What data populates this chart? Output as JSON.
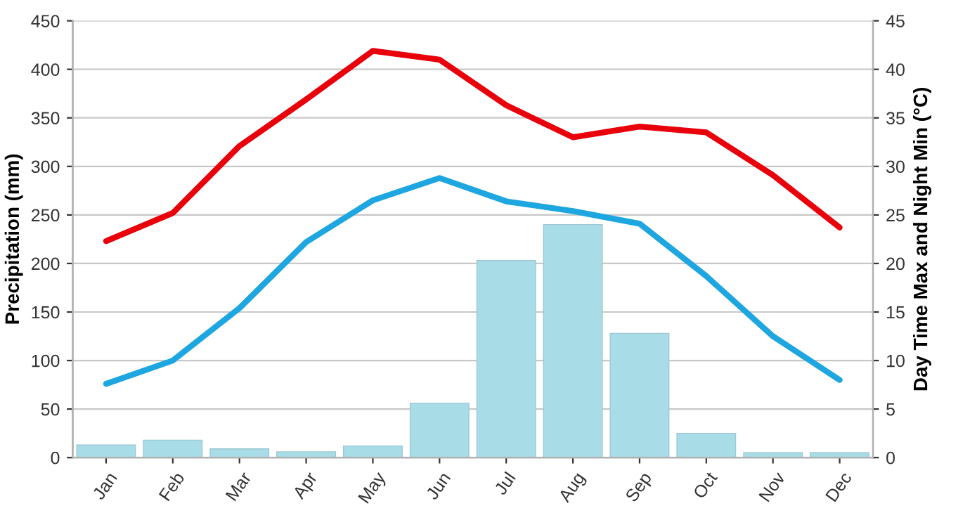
{
  "chart_data": {
    "type": "bar",
    "ylabel": "Precipitation (mm)",
    "y2label": "Day Time Max and Night Min (°C)",
    "categories": [
      "Jan",
      "Feb",
      "Mar",
      "Apr",
      "May",
      "Jun",
      "Jul",
      "Aug",
      "Sep",
      "Oct",
      "Nov",
      "Dec"
    ],
    "series": [
      {
        "color": "#a8dde8",
        "values": [
          13,
          18,
          9,
          6,
          12,
          56,
          203,
          240,
          128,
          25,
          5,
          5
        ]
      },
      {
        "type": "line",
        "axis": "y2",
        "color": "#e8000b",
        "values": [
          22.3,
          25.2,
          32.1,
          36.9,
          41.9,
          41.0,
          36.3,
          33.0,
          34.1,
          33.5,
          29.1,
          23.7
        ]
      },
      {
        "type": "line",
        "axis": "y2",
        "color": "#1ea6e0",
        "values": [
          7.6,
          10.0,
          15.4,
          22.2,
          26.5,
          28.8,
          26.4,
          25.4,
          24.1,
          18.7,
          12.5,
          8.0
        ]
      }
    ],
    "ylim": [
      0,
      450
    ],
    "yticks": [
      0,
      50,
      100,
      150,
      200,
      250,
      300,
      350,
      400,
      450
    ],
    "y2lim": [
      0,
      45
    ],
    "y2ticks": [
      0,
      5,
      10,
      15,
      20,
      25,
      30,
      35,
      40,
      45
    ],
    "grid": "y",
    "marker": "none",
    "line_style": "solid"
  }
}
